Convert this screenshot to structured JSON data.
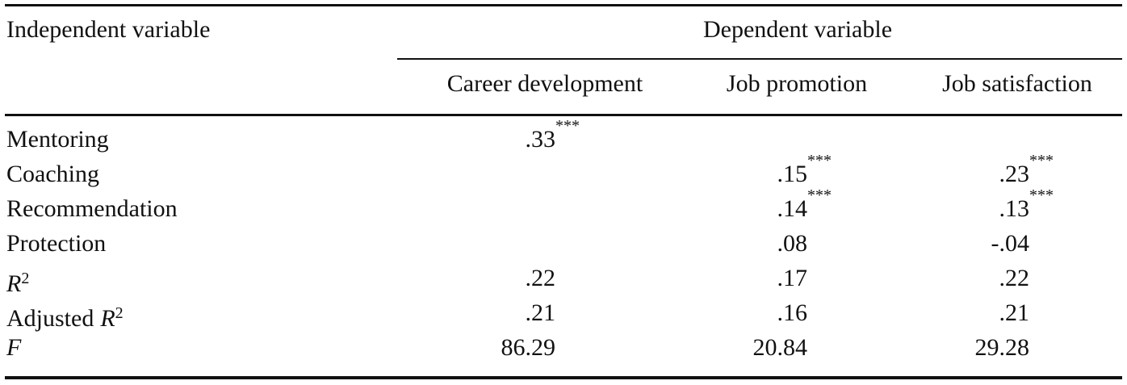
{
  "table": {
    "header": {
      "independent": "Independent variable",
      "dependent": "Dependent variable",
      "columns": [
        "Career development",
        "Job promotion",
        "Job satisfaction"
      ]
    },
    "rows": [
      {
        "label": "Mentoring",
        "cells": [
          {
            "value": ".33",
            "sig": "***"
          },
          null,
          null
        ]
      },
      {
        "label": "Coaching",
        "cells": [
          null,
          {
            "value": ".15",
            "sig": "***"
          },
          {
            "value": ".23",
            "sig": "***"
          }
        ]
      },
      {
        "label": "Recommendation",
        "cells": [
          null,
          {
            "value": ".14",
            "sig": "***"
          },
          {
            "value": ".13",
            "sig": "***"
          }
        ]
      },
      {
        "label": "Protection",
        "cells": [
          null,
          {
            "value": ".08"
          },
          {
            "value": "-.04"
          }
        ]
      },
      {
        "symbol": "R",
        "sup": "2",
        "cells": [
          {
            "value": ".22"
          },
          {
            "value": ".17"
          },
          {
            "value": ".22"
          }
        ]
      },
      {
        "label": "Adjusted",
        "symbol": "R",
        "sup": "2",
        "cells": [
          {
            "value": ".21"
          },
          {
            "value": ".16"
          },
          {
            "value": ".21"
          }
        ]
      },
      {
        "symbol": "F",
        "cells": [
          {
            "value": "86.29"
          },
          {
            "value": "20.84"
          },
          {
            "value": "29.28"
          }
        ]
      }
    ]
  }
}
